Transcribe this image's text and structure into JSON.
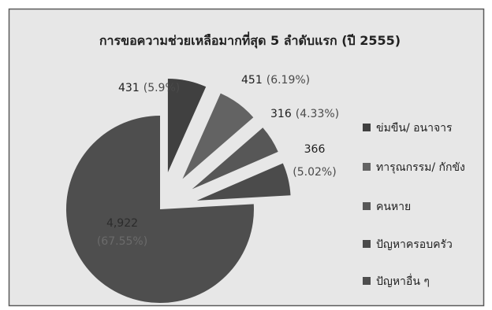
{
  "chart_data": {
    "type": "pie",
    "title": "การขอความช่วยเหลือมากที่สุด 5 ลำดับแรก (ปี 2555)",
    "categories": [
      "ข่มขืน/ อนาจาร",
      "ทารุณกรรม/ กักขัง",
      "คนหาย",
      "ปัญหาครอบครัว",
      "ปัญหาอื่น ๆ"
    ],
    "values": [
      431,
      451,
      316,
      366,
      4922
    ],
    "data_labels": [
      {
        "value": "431",
        "percent": "(5.9%)"
      },
      {
        "value": "451",
        "percent": "(6.19%)"
      },
      {
        "value": "316",
        "percent": "(4.33%)"
      },
      {
        "value": "366",
        "percent": "(5.02%)"
      },
      {
        "value": "4,922",
        "percent": "(67.55%)"
      }
    ],
    "exploded": [
      true,
      true,
      true,
      true,
      false
    ],
    "legend_position": "right",
    "colors": [
      "#404040",
      "#636363",
      "#575757",
      "#4b4b4b",
      "#4e4e4e"
    ]
  },
  "colors": {
    "chart_background": "#e7e7e7",
    "frame": "#5a5a5a"
  }
}
